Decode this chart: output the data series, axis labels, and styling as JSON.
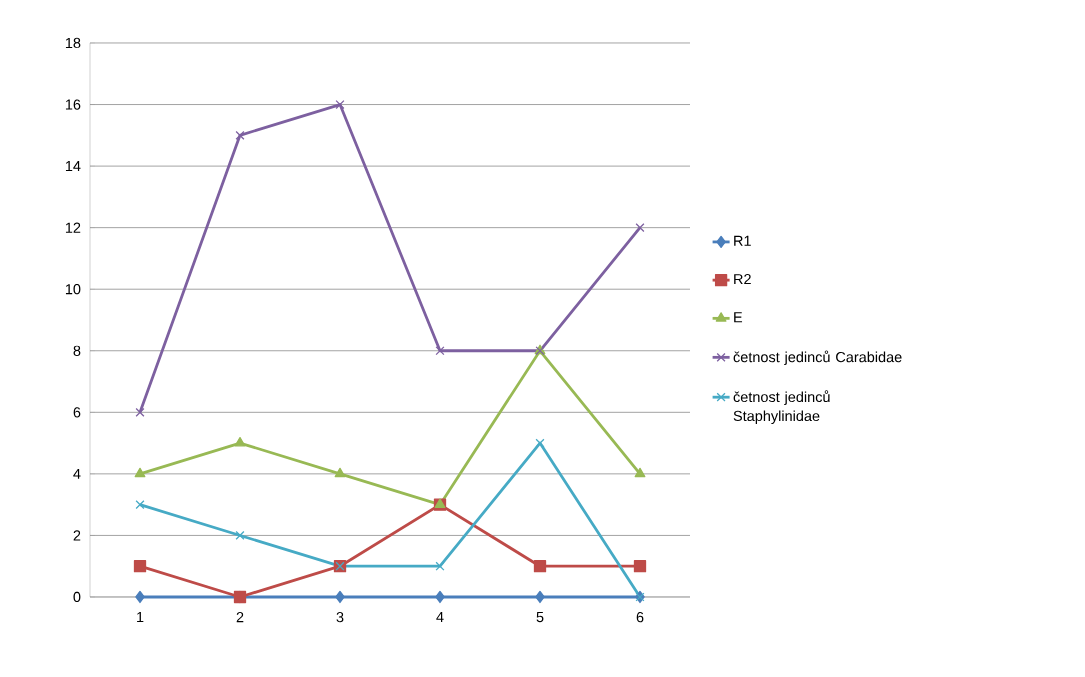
{
  "chart_data": {
    "type": "line",
    "categories": [
      "1",
      "2",
      "3",
      "4",
      "5",
      "6"
    ],
    "series": [
      {
        "name": "R1",
        "color": "#4a7ebb",
        "marker": "diamond",
        "values": [
          0,
          0,
          0,
          0,
          0,
          0
        ]
      },
      {
        "name": "R2",
        "color": "#be4b48",
        "marker": "square",
        "values": [
          1,
          0,
          1,
          3,
          1,
          1
        ]
      },
      {
        "name": "E",
        "color": "#98b954",
        "marker": "triangle",
        "values": [
          4,
          5,
          4,
          3,
          8,
          4
        ]
      },
      {
        "name": "četnost jedinců Carabidae",
        "color": "#7d60a0",
        "marker": "cross",
        "values": [
          6,
          15,
          16,
          8,
          8,
          12
        ]
      },
      {
        "name": "četnost jedinců Staphylinidae",
        "color": "#46aac5",
        "marker": "cross",
        "values": [
          3,
          2,
          1,
          1,
          5,
          0
        ]
      }
    ],
    "ylim": [
      0,
      18
    ],
    "yticks": [
      0,
      2,
      4,
      6,
      8,
      10,
      12,
      14,
      16,
      18
    ],
    "grid": "y",
    "legend": "right",
    "line_style": "solid"
  }
}
